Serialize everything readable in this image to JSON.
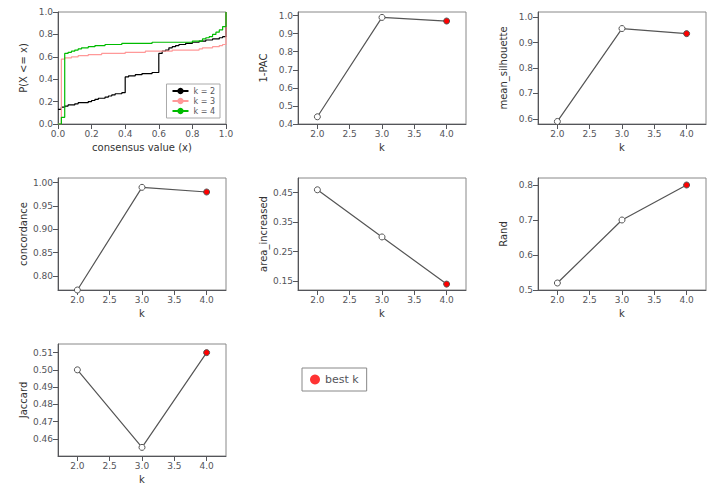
{
  "chart_data": [
    {
      "type": "step",
      "xlabel": "consensus value (x)",
      "ylabel": "P(X <= x)",
      "x": [
        0.0,
        0.02,
        0.04,
        0.06,
        0.08,
        0.1,
        0.12,
        0.14,
        0.16,
        0.18,
        0.2,
        0.22,
        0.24,
        0.26,
        0.28,
        0.3,
        0.32,
        0.34,
        0.36,
        0.38,
        0.4,
        0.42,
        0.44,
        0.46,
        0.48,
        0.5,
        0.52,
        0.54,
        0.56,
        0.58,
        0.6,
        0.62,
        0.64,
        0.66,
        0.68,
        0.7,
        0.72,
        0.74,
        0.76,
        0.78,
        0.8,
        0.82,
        0.84,
        0.86,
        0.88,
        0.9,
        0.92,
        0.94,
        0.96,
        0.98,
        1.0
      ],
      "series": [
        {
          "name": "k = 2",
          "color": "#000000",
          "values": [
            0.13,
            0.15,
            0.16,
            0.17,
            0.17,
            0.18,
            0.19,
            0.19,
            0.19,
            0.2,
            0.21,
            0.22,
            0.23,
            0.23,
            0.24,
            0.25,
            0.26,
            0.27,
            0.27,
            0.28,
            0.42,
            0.43,
            0.43,
            0.44,
            0.44,
            0.45,
            0.45,
            0.45,
            0.46,
            0.46,
            0.63,
            0.65,
            0.66,
            0.68,
            0.69,
            0.7,
            0.71,
            0.71,
            0.72,
            0.72,
            0.73,
            0.73,
            0.74,
            0.74,
            0.75,
            0.75,
            0.76,
            0.76,
            0.77,
            0.78,
            1.0
          ]
        },
        {
          "name": "k = 3",
          "color": "#ff9999",
          "values": [
            0.0,
            0.58,
            0.59,
            0.59,
            0.6,
            0.6,
            0.61,
            0.61,
            0.61,
            0.62,
            0.62,
            0.62,
            0.62,
            0.63,
            0.63,
            0.63,
            0.63,
            0.63,
            0.63,
            0.63,
            0.64,
            0.64,
            0.64,
            0.64,
            0.64,
            0.64,
            0.65,
            0.65,
            0.65,
            0.65,
            0.65,
            0.65,
            0.65,
            0.65,
            0.66,
            0.66,
            0.66,
            0.66,
            0.66,
            0.66,
            0.66,
            0.66,
            0.67,
            0.68,
            0.68,
            0.68,
            0.69,
            0.69,
            0.7,
            0.71,
            1.0
          ]
        },
        {
          "name": "k = 4",
          "color": "#00bb00",
          "values": [
            0.0,
            0.06,
            0.63,
            0.64,
            0.65,
            0.66,
            0.67,
            0.68,
            0.68,
            0.69,
            0.69,
            0.7,
            0.7,
            0.7,
            0.71,
            0.71,
            0.71,
            0.71,
            0.71,
            0.72,
            0.72,
            0.72,
            0.72,
            0.72,
            0.72,
            0.72,
            0.72,
            0.72,
            0.73,
            0.73,
            0.73,
            0.73,
            0.73,
            0.73,
            0.73,
            0.73,
            0.73,
            0.73,
            0.73,
            0.73,
            0.74,
            0.74,
            0.74,
            0.76,
            0.77,
            0.78,
            0.8,
            0.82,
            0.84,
            0.87,
            1.0
          ]
        }
      ],
      "xlim": [
        0.0,
        1.0
      ],
      "xticks": [
        {
          "value": 0,
          "label": "0.0"
        },
        0.2,
        0.4,
        0.6,
        0.8,
        {
          "value": 1,
          "label": "1.0"
        }
      ],
      "ylim": [
        0.0,
        1.0
      ],
      "yticks": [
        {
          "value": 0,
          "label": "0.0"
        },
        0.2,
        0.4,
        0.6,
        0.8,
        {
          "value": 1,
          "label": "1.0"
        }
      ],
      "legend": "lower right",
      "grid": false
    },
    {
      "type": "line",
      "xlabel": "k",
      "ylabel": "1-PAC",
      "x": [
        2,
        3,
        4
      ],
      "series": [
        {
          "color": "#555555",
          "values": [
            0.44,
            0.99,
            0.97
          ],
          "colors": [
            "#ffffff",
            "#ffffff",
            "#ff0000"
          ],
          "marker": "circle"
        }
      ],
      "xlim": [
        1.7,
        4.3
      ],
      "xticks": [
        {
          "value": 2,
          "label": "2.0"
        },
        2.5,
        {
          "value": 3,
          "label": "3.0"
        },
        3.5,
        {
          "value": 4,
          "label": "4.0"
        }
      ],
      "ylim": [
        0.4,
        1.02
      ],
      "yticks": [
        0.4,
        0.5,
        0.6,
        0.7,
        0.8,
        0.9,
        {
          "value": 1,
          "label": "1.0"
        }
      ],
      "grid": false
    },
    {
      "type": "line",
      "xlabel": "k",
      "ylabel": "mean_silhouette",
      "x": [
        2,
        3,
        4
      ],
      "series": [
        {
          "color": "#555555",
          "values": [
            0.59,
            0.955,
            0.935
          ],
          "colors": [
            "#ffffff",
            "#ffffff",
            "#ff0000"
          ],
          "marker": "circle"
        }
      ],
      "xlim": [
        1.7,
        4.3
      ],
      "xticks": [
        {
          "value": 2,
          "label": "2.0"
        },
        2.5,
        {
          "value": 3,
          "label": "3.0"
        },
        3.5,
        {
          "value": 4,
          "label": "4.0"
        }
      ],
      "ylim": [
        0.58,
        1.02
      ],
      "yticks": [
        0.6,
        0.7,
        0.8,
        0.9,
        {
          "value": 1,
          "label": "1.0"
        }
      ],
      "grid": false
    },
    {
      "type": "line",
      "xlabel": "k",
      "ylabel": "concordance",
      "x": [
        2,
        3,
        4
      ],
      "series": [
        {
          "color": "#555555",
          "values": [
            0.77,
            0.99,
            0.98
          ],
          "colors": [
            "#ffffff",
            "#ffffff",
            "#ff0000"
          ],
          "marker": "circle"
        }
      ],
      "xlim": [
        1.7,
        4.3
      ],
      "xticks": [
        {
          "value": 2,
          "label": "2.0"
        },
        2.5,
        {
          "value": 3,
          "label": "3.0"
        },
        3.5,
        {
          "value": 4,
          "label": "4.0"
        }
      ],
      "ylim": [
        0.77,
        1.01
      ],
      "yticks": [
        {
          "value": 0.8,
          "label": "0.80"
        },
        0.85,
        {
          "value": 0.9,
          "label": "0.90"
        },
        0.95,
        {
          "value": 1,
          "label": "1.00"
        }
      ],
      "grid": false
    },
    {
      "type": "line",
      "xlabel": "k",
      "ylabel": "area_increased",
      "x": [
        2,
        3,
        4
      ],
      "series": [
        {
          "color": "#555555",
          "values": [
            0.46,
            0.3,
            0.14
          ],
          "colors": [
            "#ffffff",
            "#ffffff",
            "#ff0000"
          ],
          "marker": "circle"
        }
      ],
      "xlim": [
        1.7,
        4.3
      ],
      "xticks": [
        {
          "value": 2,
          "label": "2.0"
        },
        2.5,
        {
          "value": 3,
          "label": "3.0"
        },
        3.5,
        {
          "value": 4,
          "label": "4.0"
        }
      ],
      "ylim": [
        0.12,
        0.5
      ],
      "yticks": [
        0.15,
        0.25,
        0.35,
        0.45
      ],
      "grid": false
    },
    {
      "type": "line",
      "xlabel": "k",
      "ylabel": "Rand",
      "x": [
        2,
        3,
        4
      ],
      "series": [
        {
          "color": "#555555",
          "values": [
            0.52,
            0.7,
            0.8
          ],
          "colors": [
            "#ffffff",
            "#ffffff",
            "#ff0000"
          ],
          "marker": "circle"
        }
      ],
      "xlim": [
        1.7,
        4.3
      ],
      "xticks": [
        {
          "value": 2,
          "label": "2.0"
        },
        2.5,
        {
          "value": 3,
          "label": "3.0"
        },
        3.5,
        {
          "value": 4,
          "label": "4.0"
        }
      ],
      "ylim": [
        0.5,
        0.82
      ],
      "yticks": [
        0.5,
        0.6,
        0.7,
        0.8
      ],
      "grid": false
    },
    {
      "type": "line",
      "xlabel": "k",
      "ylabel": "Jaccard",
      "x": [
        2,
        3,
        4
      ],
      "series": [
        {
          "color": "#555555",
          "values": [
            0.5,
            0.455,
            0.51
          ],
          "colors": [
            "#ffffff",
            "#ffffff",
            "#ff0000"
          ],
          "marker": "circle"
        }
      ],
      "xlim": [
        1.7,
        4.3
      ],
      "xticks": [
        {
          "value": 2,
          "label": "2.0"
        },
        2.5,
        {
          "value": 3,
          "label": "3.0"
        },
        3.5,
        {
          "value": 4,
          "label": "4.0"
        }
      ],
      "ylim": [
        0.45,
        0.515
      ],
      "yticks": [
        0.46,
        0.47,
        0.48,
        0.49,
        {
          "value": 0.5,
          "label": "0.50"
        },
        0.51
      ],
      "grid": false
    },
    {
      "type": "legend",
      "series": [
        {
          "name": "best k",
          "color": "#ff0000",
          "marker": "circle"
        }
      ]
    }
  ]
}
